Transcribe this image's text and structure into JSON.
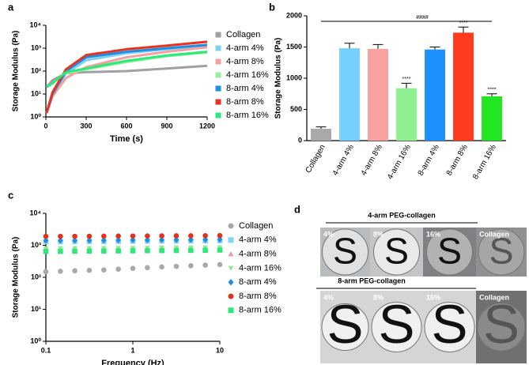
{
  "chart_data": [
    {
      "label": "a",
      "type": "line",
      "x_label": "Time (s)",
      "y_label": "Storage  Modulus (Pa)",
      "x": [
        5,
        50,
        150,
        300,
        600,
        900,
        1200
      ],
      "xlim": [
        0,
        1200
      ],
      "xticks": [
        0,
        300,
        600,
        900,
        1200
      ],
      "ylim": [
        1,
        10000
      ],
      "y_log": true,
      "yticks": [
        {
          "value": 1,
          "label": "10⁰"
        },
        {
          "value": 10,
          "label": "10¹"
        },
        {
          "value": 100,
          "label": "10²"
        },
        {
          "value": 1000,
          "label": "10³"
        },
        {
          "value": 10000,
          "label": "10⁴"
        }
      ],
      "series": [
        {
          "name": "Collagen",
          "color": "#a0a0a0",
          "values": [
            20,
            40,
            80,
            90,
            100,
            130,
            170
          ]
        },
        {
          "name": "4-arm 4%",
          "color": "#7fcff5",
          "values": [
            1.5,
            10,
            80,
            300,
            600,
            900,
            1300
          ]
        },
        {
          "name": "4-arm 8%",
          "color": "#f4a0a0",
          "values": [
            1.5,
            8,
            50,
            150,
            400,
            700,
            1100
          ]
        },
        {
          "name": "4-arm 16%",
          "color": "#98eea0",
          "values": [
            20,
            30,
            80,
            120,
            250,
            450,
            650
          ]
        },
        {
          "name": "8-arm 4%",
          "color": "#1e8fe0",
          "values": [
            1.5,
            10,
            100,
            400,
            700,
            1000,
            1400
          ]
        },
        {
          "name": "8-arm 8%",
          "color": "#e8321f",
          "values": [
            1.5,
            12,
            120,
            500,
            900,
            1300,
            1900
          ]
        },
        {
          "name": "8-arm 16%",
          "color": "#2ee87a",
          "values": [
            20,
            30,
            90,
            130,
            280,
            480,
            700
          ]
        }
      ]
    },
    {
      "label": "b",
      "type": "bar",
      "y_label": "Storage  Modulus (Pa)",
      "categories": [
        "Collagen",
        "4-arm 4%",
        "4-arm 8%",
        "4-arm 16%",
        "8-arm 4%",
        "8-arm 8%",
        "8-arm 16%"
      ],
      "values": [
        190,
        1480,
        1470,
        840,
        1460,
        1730,
        710
      ],
      "errors": [
        30,
        80,
        70,
        80,
        40,
        90,
        40
      ],
      "colors": [
        "#a9a9a9",
        "#77cfff",
        "#f7a1a1",
        "#8ff08f",
        "#1e90ff",
        "#ff3b1f",
        "#22e622"
      ],
      "ylim": [
        0,
        2000
      ],
      "yticks": [
        0,
        500,
        1000,
        1500,
        2000
      ],
      "significance": [
        null,
        null,
        null,
        "****",
        null,
        "****",
        "****"
      ],
      "bracket_label": "####"
    },
    {
      "label": "c",
      "type": "scatter",
      "x_label": "Frequency (Hz)",
      "y_label": "Storage  Modulus (Pa)",
      "x": [
        0.1,
        0.147,
        0.215,
        0.316,
        0.464,
        0.681,
        1,
        1.47,
        2.15,
        3.16,
        4.64,
        6.81,
        10
      ],
      "xlim": [
        0.1,
        10
      ],
      "x_log": true,
      "xticks": [
        0.1,
        1,
        10
      ],
      "ylim": [
        1,
        10000
      ],
      "y_log": true,
      "yticks": [
        {
          "value": 1,
          "label": "10⁰"
        },
        {
          "value": 10,
          "label": "10¹"
        },
        {
          "value": 100,
          "label": "10²"
        },
        {
          "value": 1000,
          "label": "10³"
        },
        {
          "value": 10000,
          "label": "10⁴"
        }
      ],
      "series": [
        {
          "name": "Collagen",
          "color": "#a9a9a9",
          "marker": "circle",
          "values": [
            150,
            155,
            160,
            165,
            170,
            180,
            190,
            200,
            210,
            220,
            230,
            240,
            250
          ]
        },
        {
          "name": "4-arm 4%",
          "color": "#7fd6f7",
          "marker": "square",
          "values": [
            1300,
            1300,
            1310,
            1320,
            1320,
            1330,
            1340,
            1350,
            1360,
            1370,
            1380,
            1390,
            1400
          ]
        },
        {
          "name": "4-arm 8%",
          "color": "#f49a9a",
          "marker": "triangle-up",
          "values": [
            1600,
            1600,
            1610,
            1620,
            1630,
            1640,
            1650,
            1660,
            1670,
            1680,
            1690,
            1700,
            1710
          ]
        },
        {
          "name": "4-arm 16%",
          "color": "#8fe88f",
          "marker": "triangle-down",
          "values": [
            800,
            800,
            805,
            810,
            815,
            820,
            825,
            830,
            835,
            840,
            845,
            850,
            860
          ]
        },
        {
          "name": "8-arm 4%",
          "color": "#1e8fe0",
          "marker": "diamond",
          "values": [
            1400,
            1400,
            1410,
            1420,
            1430,
            1440,
            1450,
            1460,
            1470,
            1480,
            1490,
            1500,
            1510
          ]
        },
        {
          "name": "8-arm 8%",
          "color": "#e0321f",
          "marker": "circle",
          "values": [
            1900,
            1900,
            1910,
            1920,
            1930,
            1940,
            1950,
            1960,
            1970,
            1980,
            1990,
            2000,
            2010
          ]
        },
        {
          "name": "8-arm 16%",
          "color": "#2ee87a",
          "marker": "square",
          "values": [
            650,
            650,
            655,
            660,
            665,
            670,
            675,
            680,
            685,
            690,
            695,
            700,
            710
          ]
        }
      ]
    }
  ],
  "panel_d": {
    "label": "d",
    "letter": "S",
    "rows": [
      {
        "title": "4-arm PEG-collagen",
        "samples": [
          "4%",
          "8%",
          "16%",
          "Collagen"
        ]
      },
      {
        "title": "8-arm PEG-collagen",
        "samples": [
          "4%",
          "8%",
          "16%",
          "Collagen"
        ]
      }
    ]
  }
}
